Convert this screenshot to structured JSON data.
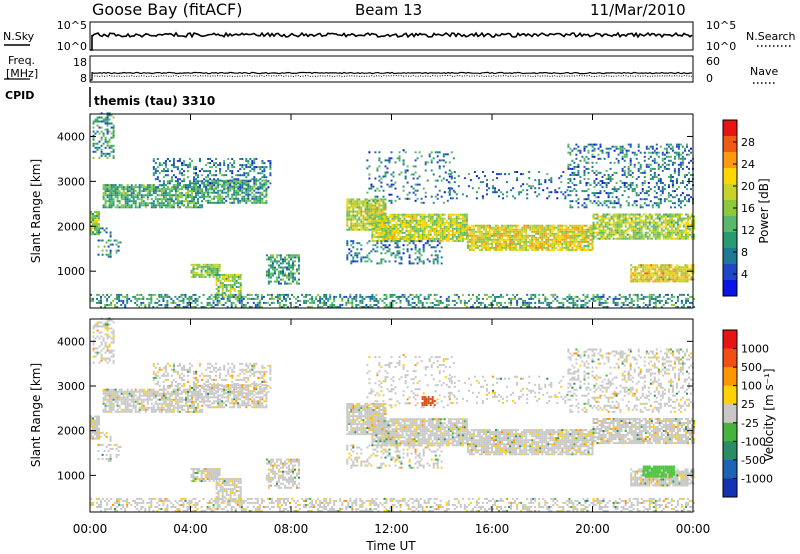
{
  "header": {
    "station": "Goose Bay (fitACF)",
    "beam": "Beam 13",
    "date": "11/Mar/2010"
  },
  "noise_panel": {
    "left_label": "N.Sky",
    "right_label": "N.Search",
    "left_ticks": [
      "10^5",
      "10^0"
    ],
    "right_ticks": [
      "10^5",
      "10^0"
    ],
    "right_legend_line": "dotted"
  },
  "freq_panel": {
    "left_label_line1": "Freq.",
    "left_label_line2": "[MHz]",
    "right_label": "Nave",
    "left_ticks": [
      "18",
      "8"
    ],
    "right_ticks": [
      "60",
      "0"
    ],
    "right_legend_line": "dotted"
  },
  "cpid_panel": {
    "label": "CPID",
    "text": "themis (tau) 3310"
  },
  "chart_data": [
    {
      "type": "heatmap",
      "name": "power",
      "x_unit": "hours UT",
      "xlim": [
        0,
        24
      ],
      "ylabel": "Slant Range [km]",
      "ylim": [
        180,
        4500
      ],
      "yticks": [
        1000,
        2000,
        3000,
        4000
      ],
      "colorbar": {
        "label": "Power [dB]",
        "ticks": [
          "28",
          "24",
          "20",
          "16",
          "12",
          "8",
          "4"
        ],
        "range": [
          0,
          30
        ],
        "colors": [
          "#0a14e6",
          "#2046c8",
          "#1e7896",
          "#2a9a70",
          "#5ab86e",
          "#8cc83c",
          "#c8d228",
          "#ffd700",
          "#ff9a10",
          "#f05a14",
          "#e61414"
        ]
      },
      "echo_regions": [
        {
          "t0": 0.0,
          "t1": 0.4,
          "r0": 1800,
          "r1": 2300,
          "level": 14,
          "density": 0.85
        },
        {
          "t0": 0.1,
          "t1": 0.9,
          "r0": 3500,
          "r1": 4500,
          "level": 9,
          "density": 0.35
        },
        {
          "t0": 0.3,
          "t1": 1.2,
          "r0": 1300,
          "r1": 2000,
          "level": 8,
          "density": 0.25
        },
        {
          "t0": 0.5,
          "t1": 4.5,
          "r0": 2400,
          "r1": 2900,
          "level": 11,
          "density": 0.75
        },
        {
          "t0": 4.5,
          "t1": 7.0,
          "r0": 2500,
          "r1": 3000,
          "level": 10,
          "density": 0.7
        },
        {
          "t0": 2.5,
          "t1": 7.2,
          "r0": 2800,
          "r1": 3500,
          "level": 7,
          "density": 0.35
        },
        {
          "t0": 4.0,
          "t1": 5.2,
          "r0": 850,
          "r1": 1150,
          "level": 14,
          "density": 0.75
        },
        {
          "t0": 5.0,
          "t1": 6.0,
          "r0": 400,
          "r1": 900,
          "level": 15,
          "density": 0.7
        },
        {
          "t0": 7.0,
          "t1": 8.3,
          "r0": 700,
          "r1": 1350,
          "level": 10,
          "density": 0.55
        },
        {
          "t0": 10.2,
          "t1": 11.8,
          "r0": 1900,
          "r1": 2600,
          "level": 17,
          "density": 0.85
        },
        {
          "t0": 11.2,
          "t1": 15.0,
          "r0": 1650,
          "r1": 2250,
          "level": 17,
          "density": 0.85
        },
        {
          "t0": 15.0,
          "t1": 20.0,
          "r0": 1450,
          "r1": 2000,
          "level": 19,
          "density": 0.85
        },
        {
          "t0": 20.0,
          "t1": 24.0,
          "r0": 1700,
          "r1": 2250,
          "level": 16,
          "density": 0.8
        },
        {
          "t0": 10.2,
          "t1": 14.0,
          "r0": 1150,
          "r1": 1650,
          "level": 7,
          "density": 0.3
        },
        {
          "t0": 11.0,
          "t1": 14.5,
          "r0": 2500,
          "r1": 3700,
          "level": 7,
          "density": 0.15
        },
        {
          "t0": 14.0,
          "t1": 19.0,
          "r0": 2600,
          "r1": 3200,
          "level": 6,
          "density": 0.15
        },
        {
          "t0": 19.0,
          "t1": 24.0,
          "r0": 2400,
          "r1": 3800,
          "level": 7,
          "density": 0.3
        },
        {
          "t0": 21.5,
          "t1": 24.0,
          "r0": 750,
          "r1": 1150,
          "level": 20,
          "density": 0.85
        },
        {
          "t0": 0.0,
          "t1": 24.0,
          "r0": 180,
          "r1": 480,
          "level": 9,
          "density": 0.4
        }
      ]
    },
    {
      "type": "heatmap",
      "name": "velocity",
      "x_unit": "hours UT",
      "xlim": [
        0,
        24
      ],
      "xlabel": "Time UT",
      "xticks": [
        "00:00",
        "04:00",
        "08:00",
        "12:00",
        "16:00",
        "20:00",
        "00:00"
      ],
      "ylabel": "Slant Range [km]",
      "ylim": [
        180,
        4500
      ],
      "yticks": [
        1000,
        2000,
        3000,
        4000
      ],
      "colorbar": {
        "label": "Velocity [m s⁻¹]",
        "ticks": [
          "1000",
          "500",
          "100",
          "25",
          "-25",
          "-100",
          "-500",
          "-1000"
        ],
        "colors": [
          "#1432b4",
          "#1e64b4",
          "#2a8c64",
          "#46b43c",
          "#c8c8c8",
          "#ffd200",
          "#ff9600",
          "#f05014",
          "#e61414"
        ]
      },
      "echo_regions_note": "same scatter regions as power panel, predominantly ground scatter (grey)",
      "special_regions": [
        {
          "t0": 22.0,
          "t1": 23.2,
          "r0": 950,
          "r1": 1200,
          "color": "#46c83c",
          "density": 0.9
        },
        {
          "t0": 13.2,
          "t1": 13.7,
          "r0": 2550,
          "r1": 2750,
          "color": "#e04a14",
          "density": 0.7
        }
      ]
    }
  ]
}
